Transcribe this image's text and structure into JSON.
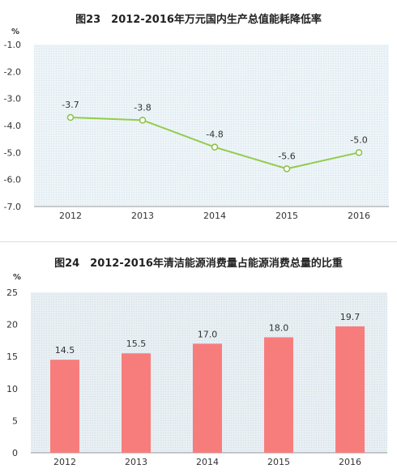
{
  "colors": {
    "line": "#92cc4a",
    "marker_fill": "#ffffff",
    "marker_stroke": "#8ac044",
    "bar": "#f77d7d",
    "plot_bg1": "#edf4f8",
    "plot_bg2": "#e8eff3"
  },
  "chart_data": [
    {
      "type": "line",
      "title": "图23　2012-2016年万元国内生产总值能耗降低率",
      "unit": "%",
      "categories": [
        "2012",
        "2013",
        "2014",
        "2015",
        "2016"
      ],
      "values": [
        -3.7,
        -3.8,
        -4.8,
        -5.6,
        -5.0
      ],
      "data_labels": [
        "-3.7",
        "-3.8",
        "-4.8",
        "-5.6",
        "-5.0"
      ],
      "ylim": [
        -7.0,
        -1.0
      ],
      "yticks": [
        -1.0,
        -2.0,
        -3.0,
        -4.0,
        -5.0,
        -6.0,
        -7.0
      ],
      "ytick_labels": [
        "-1.0",
        "-2.0",
        "-3.0",
        "-4.0",
        "-5.0",
        "-6.0",
        "-7.0"
      ],
      "grid": false,
      "legend": "none"
    },
    {
      "type": "bar",
      "title": "图24　2012-2016年清洁能源消费量占能源消费总量的比重",
      "unit": "%",
      "categories": [
        "2012",
        "2013",
        "2014",
        "2015",
        "2016"
      ],
      "values": [
        14.5,
        15.5,
        17.0,
        18.0,
        19.7
      ],
      "data_labels": [
        "14.5",
        "15.5",
        "17.0",
        "18.0",
        "19.7"
      ],
      "ylim": [
        0,
        25
      ],
      "yticks": [
        0,
        5,
        10,
        15,
        20,
        25
      ],
      "ytick_labels": [
        "0",
        "5",
        "10",
        "15",
        "20",
        "25"
      ],
      "grid": false,
      "legend": "none"
    }
  ]
}
